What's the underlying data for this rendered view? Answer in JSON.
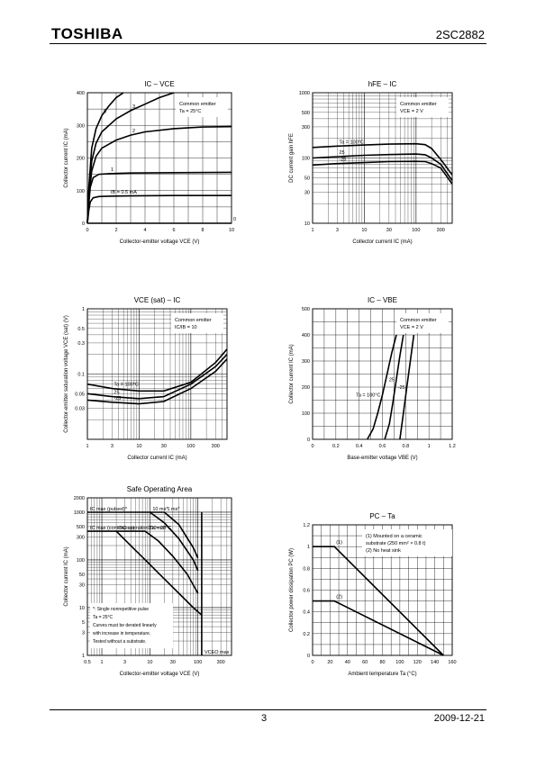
{
  "header": {
    "logo": "TOSHIBA",
    "part_number": "2SC2882"
  },
  "footer": {
    "page": "3",
    "date": "2009-12-21"
  },
  "chart_data": [
    {
      "id": "ic_vce",
      "type": "line",
      "title": "IC – VCE",
      "xlabel": "Collector-emitter voltage    VCE    (V)",
      "ylabel": "Collector current    IC    (mA)",
      "xlim": [
        0,
        10
      ],
      "ylim": [
        0,
        400
      ],
      "xticks": [
        0,
        2,
        4,
        6,
        8,
        10
      ],
      "yticks": [
        0,
        100,
        200,
        300,
        400
      ],
      "legend_lines": [
        "Common emitter",
        "Ta = 25°C"
      ],
      "series": [
        {
          "name": "5",
          "x": [
            0,
            0.1,
            0.3,
            0.6,
            1.0,
            1.5,
            2.0,
            2.5
          ],
          "y": [
            0,
            110,
            230,
            290,
            330,
            360,
            385,
            400
          ]
        },
        {
          "name": "3",
          "x": [
            0,
            0.1,
            0.3,
            0.6,
            1.0,
            2.0,
            3.0,
            4.0,
            5.0,
            6.0
          ],
          "y": [
            0,
            95,
            190,
            245,
            280,
            320,
            345,
            365,
            385,
            400
          ]
        },
        {
          "name": "2",
          "x": [
            0,
            0.1,
            0.3,
            0.6,
            1.0,
            2.0,
            3.0,
            4.0,
            6.0,
            8.0,
            10.0
          ],
          "y": [
            0,
            80,
            160,
            205,
            230,
            255,
            270,
            280,
            290,
            295,
            296
          ]
        },
        {
          "name": "1",
          "x": [
            0,
            0.1,
            0.2,
            0.4,
            0.8,
            1.5,
            3.0,
            6.0,
            10.0
          ],
          "y": [
            0,
            60,
            110,
            140,
            150,
            152,
            154,
            155,
            156
          ]
        },
        {
          "name": "IB = 0.5 mA",
          "x": [
            0,
            0.1,
            0.2,
            0.4,
            0.8,
            1.5,
            3.0,
            6.0,
            10.0
          ],
          "y": [
            0,
            40,
            65,
            78,
            82,
            83,
            84,
            85,
            85
          ]
        },
        {
          "name": "0",
          "x": [
            0,
            10
          ],
          "y": [
            0,
            0
          ]
        }
      ]
    },
    {
      "id": "hfe_ic",
      "type": "line",
      "title": "hFE – IC",
      "xlabel": "Collector current    IC    (mA)",
      "ylabel": "DC current gain    hFE",
      "xscale": "log",
      "yscale": "log",
      "xlim": [
        1,
        500
      ],
      "ylim": [
        10,
        1000
      ],
      "xticks": [
        1,
        3,
        10,
        30,
        100,
        300
      ],
      "yticks": [
        10,
        30,
        50,
        100,
        300,
        500,
        1000
      ],
      "legend_lines": [
        "Common emitter",
        "VCE = 2 V"
      ],
      "series": [
        {
          "name": "Ta = 100°C",
          "x": [
            1,
            3,
            10,
            30,
            100,
            150,
            200,
            300,
            500
          ],
          "y": [
            145,
            152,
            158,
            163,
            165,
            160,
            140,
            95,
            55
          ]
        },
        {
          "name": "25",
          "x": [
            1,
            3,
            10,
            30,
            100,
            150,
            200,
            300,
            500
          ],
          "y": [
            100,
            105,
            110,
            113,
            115,
            112,
            100,
            80,
            45
          ]
        },
        {
          "name": "-25",
          "x": [
            1,
            3,
            10,
            30,
            100,
            150,
            200,
            300,
            500
          ],
          "y": [
            78,
            82,
            85,
            88,
            89,
            88,
            82,
            70,
            40
          ]
        }
      ]
    },
    {
      "id": "vcesat_ic",
      "type": "line",
      "title": "VCE (sat) – IC",
      "xlabel": "Collector current    IC    (mA)",
      "ylabel": "Collector-emitter saturation voltage    VCE (sat)    (V)",
      "xscale": "log",
      "yscale": "log",
      "xlim": [
        1,
        500
      ],
      "ylim": [
        0.01,
        1
      ],
      "xticks": [
        1,
        3,
        10,
        30,
        100,
        300
      ],
      "yticks": [
        0.03,
        0.05,
        0.1,
        0.3,
        0.5,
        1
      ],
      "legend_lines": [
        "Common emitter",
        "IC/IB = 10"
      ],
      "series": [
        {
          "name": "Ta = 100°C",
          "x": [
            1,
            3,
            10,
            30,
            100,
            300,
            500
          ],
          "y": [
            0.07,
            0.06,
            0.055,
            0.055,
            0.075,
            0.15,
            0.24
          ]
        },
        {
          "name": "25",
          "x": [
            1,
            3,
            10,
            30,
            100,
            300,
            500
          ],
          "y": [
            0.05,
            0.045,
            0.042,
            0.045,
            0.07,
            0.13,
            0.2
          ]
        },
        {
          "name": "-25",
          "x": [
            1,
            3,
            10,
            30,
            100,
            300,
            500
          ],
          "y": [
            0.04,
            0.037,
            0.035,
            0.038,
            0.06,
            0.11,
            0.17
          ]
        }
      ]
    },
    {
      "id": "ic_vbe",
      "type": "line",
      "title": "IC – VBE",
      "xlabel": "Base-emitter voltage    VBE    (V)",
      "ylabel": "Collector current    IC    (mA)",
      "xlim": [
        0,
        1.2
      ],
      "ylim": [
        0,
        500
      ],
      "xticks": [
        0,
        0.2,
        0.4,
        0.6,
        0.8,
        1.0,
        1.2
      ],
      "yticks": [
        0,
        100,
        200,
        300,
        400,
        500
      ],
      "legend_lines": [
        "Common emitter",
        "VCE = 2 V"
      ],
      "series": [
        {
          "name": "Ta = 100°C",
          "x": [
            0.47,
            0.52,
            0.56,
            0.6,
            0.64,
            0.68,
            0.72
          ],
          "y": [
            0,
            40,
            100,
            170,
            250,
            330,
            400
          ]
        },
        {
          "name": "25",
          "x": [
            0.62,
            0.66,
            0.69,
            0.72,
            0.75,
            0.78
          ],
          "y": [
            0,
            60,
            140,
            230,
            320,
            400
          ]
        },
        {
          "name": "-25",
          "x": [
            0.75,
            0.78,
            0.81,
            0.84,
            0.87
          ],
          "y": [
            0,
            100,
            200,
            300,
            400
          ]
        }
      ]
    },
    {
      "id": "soa",
      "type": "line",
      "title": "Safe Operating Area",
      "xlabel": "Collector-emitter voltage    VCE    (V)",
      "ylabel": "Collector current    IC    (mA)",
      "xscale": "log",
      "yscale": "log",
      "xlim": [
        0.5,
        500
      ],
      "ylim": [
        1,
        2000
      ],
      "xticks": [
        0.5,
        1,
        3,
        10,
        30,
        100,
        300
      ],
      "yticks": [
        1,
        3,
        5,
        10,
        30,
        50,
        100,
        300,
        500,
        1000,
        2000
      ],
      "labels": [
        "IC max (pulsed)*",
        "IC max (continuous)",
        "1 ms*",
        "10 ms*",
        "100 ms*",
        "DC operation  Ta = 25°C",
        "VCEO max"
      ],
      "notes": [
        "*: Single nonrepetitive pulse",
        "Ta = 25°C",
        "Curves must be derated linearly",
        "with increase in temperature.",
        "Tested without a substrate."
      ],
      "series": [
        {
          "name": "IC max (pulsed)*",
          "x": [
            0.5,
            20
          ],
          "y": [
            1000,
            1000
          ]
        },
        {
          "name": "IC max (continuous)",
          "x": [
            0.5,
            8
          ],
          "y": [
            400,
            400
          ]
        },
        {
          "name": "1 ms*",
          "x": [
            20,
            40,
            80,
            100
          ],
          "y": [
            1000,
            550,
            180,
            110
          ]
        },
        {
          "name": "10 ms*",
          "x": [
            10,
            20,
            40,
            80,
            100
          ],
          "y": [
            1000,
            600,
            280,
            100,
            60
          ]
        },
        {
          "name": "100 ms*",
          "x": [
            8,
            15,
            30,
            60,
            100
          ],
          "y": [
            400,
            250,
            120,
            50,
            20
          ]
        },
        {
          "name": "DC operation  Ta = 25°C",
          "x": [
            2,
            5,
            10,
            20,
            40,
            80,
            120
          ],
          "y": [
            400,
            160,
            80,
            40,
            20,
            10,
            7
          ]
        },
        {
          "name": "VCEO max",
          "x": [
            120,
            120
          ],
          "y": [
            1,
            1000
          ]
        }
      ]
    },
    {
      "id": "pc_ta",
      "type": "line",
      "title": "PC – Ta",
      "xlabel": "Ambient temperature    Ta    (°C)",
      "ylabel": "Collector power dissipation    PC    (W)",
      "xlim": [
        0,
        160
      ],
      "ylim": [
        0,
        1.2
      ],
      "xticks": [
        0,
        20,
        40,
        60,
        80,
        100,
        120,
        140,
        160
      ],
      "yticks": [
        0,
        0.2,
        0.4,
        0.6,
        0.8,
        1.0,
        1.2
      ],
      "legend_lines": [
        "(1)  Mounted on a ceramic",
        "substrate (250 mm² × 0.8 t)",
        "(2)  No heat sink"
      ],
      "series": [
        {
          "name": "(1)",
          "x": [
            0,
            25,
            150
          ],
          "y": [
            1.0,
            1.0,
            0
          ]
        },
        {
          "name": "(2)",
          "x": [
            0,
            25,
            150
          ],
          "y": [
            0.5,
            0.5,
            0
          ]
        }
      ]
    }
  ]
}
